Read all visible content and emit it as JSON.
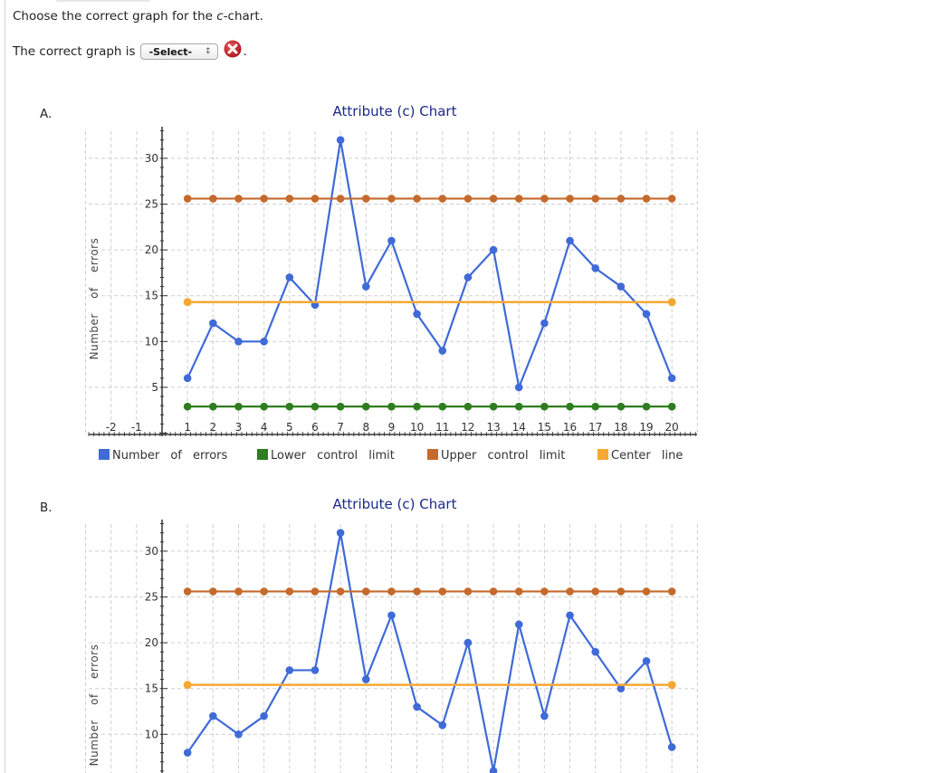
{
  "question": {
    "prompt_prefix": "Choose the correct graph for the ",
    "prompt_italic": "c",
    "prompt_suffix": "-chart.",
    "answer_prefix": "The correct graph is",
    "select_value": "-Select-",
    "select_arrows": "↕",
    "status_icon": "incorrect-x-icon",
    "answer_suffix": "."
  },
  "options": [
    {
      "label": "A.",
      "chart_index": 0
    },
    {
      "label": "B.",
      "chart_index": 1
    }
  ],
  "colors": {
    "data": "#3f6ad8",
    "lcl": "#2e7d1e",
    "ucl": "#c56a2c",
    "center": "#f5a833",
    "title": "#1b2a8a",
    "grid": "#cfcfcf",
    "incorrect": "#c0282d"
  },
  "chart_data": [
    {
      "type": "line",
      "title": "Attribute (c) Chart",
      "xlabel": "",
      "ylabel": "Number of errors",
      "x_ticks": [
        -2,
        -1,
        1,
        2,
        3,
        4,
        5,
        6,
        7,
        8,
        9,
        10,
        11,
        12,
        13,
        14,
        15,
        16,
        17,
        18,
        19,
        20
      ],
      "y_ticks": [
        5,
        10,
        15,
        20,
        25,
        30
      ],
      "xlim": [
        -3,
        21
      ],
      "ylim": [
        0,
        33
      ],
      "grid": true,
      "legend_position": "bottom",
      "x": [
        1,
        2,
        3,
        4,
        5,
        6,
        7,
        8,
        9,
        10,
        11,
        12,
        13,
        14,
        15,
        16,
        17,
        18,
        19,
        20
      ],
      "series": [
        {
          "name": "Number of errors",
          "color": "#3f6ad8",
          "values": [
            6,
            12,
            10,
            10,
            17,
            14,
            32,
            16,
            21,
            13,
            9,
            17,
            20,
            5,
            12,
            21,
            18,
            16,
            13,
            6
          ]
        },
        {
          "name": "Lower control limit",
          "color": "#2e7d1e",
          "values": [
            2.9,
            2.9,
            2.9,
            2.9,
            2.9,
            2.9,
            2.9,
            2.9,
            2.9,
            2.9,
            2.9,
            2.9,
            2.9,
            2.9,
            2.9,
            2.9,
            2.9,
            2.9,
            2.9,
            2.9
          ]
        },
        {
          "name": "Upper control limit",
          "color": "#c56a2c",
          "values": [
            25.6,
            25.6,
            25.6,
            25.6,
            25.6,
            25.6,
            25.6,
            25.6,
            25.6,
            25.6,
            25.6,
            25.6,
            25.6,
            25.6,
            25.6,
            25.6,
            25.6,
            25.6,
            25.6,
            25.6
          ]
        },
        {
          "name": "Center line",
          "color": "#f5a833",
          "values": [
            14.3,
            null,
            null,
            null,
            null,
            null,
            null,
            null,
            null,
            null,
            null,
            null,
            null,
            null,
            null,
            null,
            null,
            null,
            null,
            14.3
          ],
          "endpoint_markers_only": true
        }
      ]
    },
    {
      "type": "line",
      "title": "Attribute (c) Chart",
      "xlabel": "",
      "ylabel": "Number of errors",
      "y_ticks": [
        10,
        15,
        20,
        25,
        30
      ],
      "xlim": [
        -3,
        21
      ],
      "ylim": [
        0,
        33
      ],
      "grid": true,
      "x": [
        1,
        2,
        3,
        4,
        5,
        6,
        7,
        8,
        9,
        10,
        11,
        12,
        13,
        14,
        15,
        16,
        17,
        18,
        19,
        20
      ],
      "series": [
        {
          "name": "Number of errors",
          "color": "#3f6ad8",
          "values": [
            8,
            12,
            10,
            12,
            17,
            17,
            32,
            16,
            23,
            13,
            11,
            20,
            6,
            22,
            12,
            23,
            19,
            15,
            18,
            8.6
          ]
        },
        {
          "name": "Upper control limit",
          "color": "#c56a2c",
          "values": [
            25.6,
            25.6,
            25.6,
            25.6,
            25.6,
            25.6,
            25.6,
            25.6,
            25.6,
            25.6,
            25.6,
            25.6,
            25.6,
            25.6,
            25.6,
            25.6,
            25.6,
            25.6,
            25.6,
            25.6
          ]
        },
        {
          "name": "Center line",
          "color": "#f5a833",
          "values": [
            15.4,
            null,
            null,
            null,
            null,
            null,
            null,
            null,
            null,
            null,
            null,
            null,
            null,
            null,
            null,
            null,
            null,
            null,
            null,
            15.4
          ],
          "endpoint_markers_only": true
        }
      ],
      "note": "Chart is cut off at the bottom of the screenshot; lower region (incl. LCL, x-axis, legend) not visible."
    }
  ]
}
